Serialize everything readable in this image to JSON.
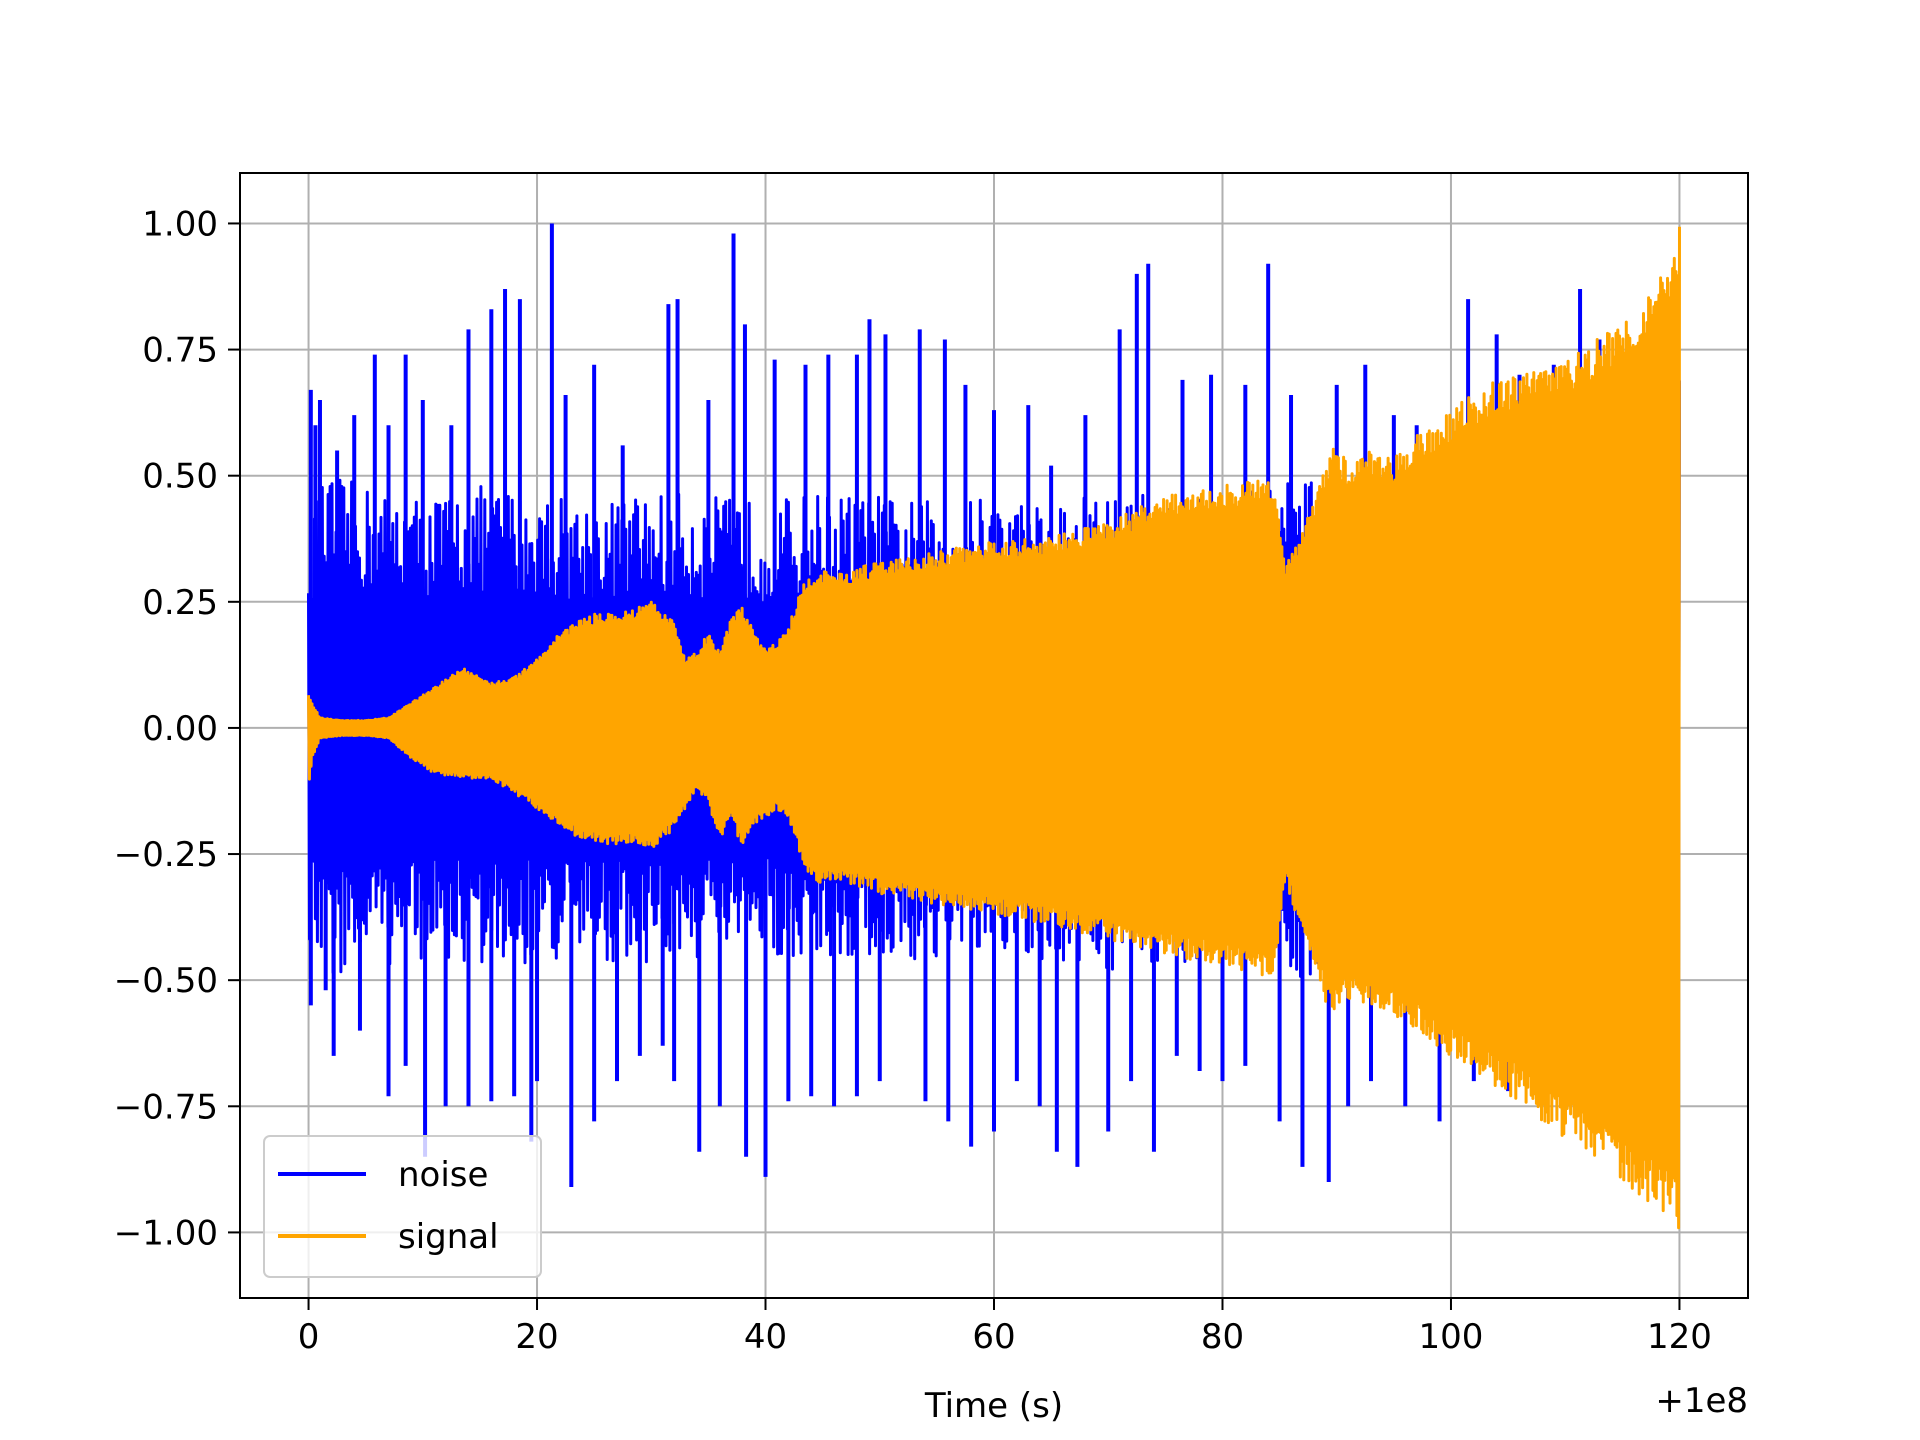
{
  "chart_data": {
    "type": "line",
    "title": "",
    "xlabel": "Time (s)",
    "ylabel": "",
    "x_offset_text": "+1e8",
    "xlim": [
      -6,
      126
    ],
    "ylim": [
      -1.13,
      1.1
    ],
    "x_ticks": [
      0,
      20,
      40,
      60,
      80,
      100,
      120
    ],
    "x_tick_labels": [
      "0",
      "20",
      "40",
      "60",
      "80",
      "100",
      "120"
    ],
    "y_ticks": [
      -1.0,
      -0.75,
      -0.5,
      -0.25,
      0.0,
      0.25,
      0.5,
      0.75,
      1.0
    ],
    "y_tick_labels": [
      "−1.00",
      "−0.75",
      "−0.50",
      "−0.25",
      "0.00",
      "0.25",
      "0.50",
      "0.75",
      "1.00"
    ],
    "grid": true,
    "legend": {
      "placement": "lower-left"
    },
    "series": [
      {
        "name": "noise",
        "color": "#0000ff",
        "envelope": {
          "x": [
            0,
            2,
            5,
            10,
            15,
            20,
            25,
            30,
            35,
            40,
            45,
            50,
            55,
            60,
            65,
            70,
            75,
            80,
            85,
            90,
            95,
            100,
            105,
            110,
            115,
            120
          ],
          "upper": [
            0.45,
            0.5,
            0.48,
            0.46,
            0.48,
            0.47,
            0.45,
            0.47,
            0.46,
            0.45,
            0.47,
            0.46,
            0.45,
            0.46,
            0.45,
            0.47,
            0.46,
            0.45,
            0.5,
            0.48,
            0.5,
            0.52,
            0.55,
            0.6,
            0.7,
            0.75
          ],
          "lower": [
            -0.45,
            -0.5,
            -0.48,
            -0.46,
            -0.48,
            -0.47,
            -0.46,
            -0.47,
            -0.46,
            -0.45,
            -0.47,
            -0.46,
            -0.47,
            -0.46,
            -0.47,
            -0.48,
            -0.47,
            -0.46,
            -0.5,
            -0.48,
            -0.52,
            -0.55,
            -0.6,
            -0.65,
            -0.7,
            -0.75
          ]
        },
        "spikes": [
          [
            0.2,
            0.67
          ],
          [
            0.6,
            0.6
          ],
          [
            1.0,
            0.65
          ],
          [
            2.5,
            0.55
          ],
          [
            4,
            0.62
          ],
          [
            5.8,
            0.74
          ],
          [
            7,
            0.6
          ],
          [
            8.5,
            0.74
          ],
          [
            10,
            0.65
          ],
          [
            12.5,
            0.6
          ],
          [
            14,
            0.79
          ],
          [
            16,
            0.83
          ],
          [
            17.2,
            0.87
          ],
          [
            18.5,
            0.85
          ],
          [
            21.3,
            1.0
          ],
          [
            22.5,
            0.66
          ],
          [
            25,
            0.72
          ],
          [
            27.5,
            0.56
          ],
          [
            31.5,
            0.84
          ],
          [
            32.3,
            0.85
          ],
          [
            35,
            0.65
          ],
          [
            37.2,
            0.98
          ],
          [
            38.2,
            0.8
          ],
          [
            40.8,
            0.73
          ],
          [
            43.5,
            0.72
          ],
          [
            45.5,
            0.74
          ],
          [
            48,
            0.74
          ],
          [
            49.1,
            0.81
          ],
          [
            50.5,
            0.78
          ],
          [
            53.5,
            0.79
          ],
          [
            55.7,
            0.77
          ],
          [
            57.5,
            0.68
          ],
          [
            60,
            0.63
          ],
          [
            63,
            0.64
          ],
          [
            65,
            0.52
          ],
          [
            68,
            0.62
          ],
          [
            71,
            0.79
          ],
          [
            72.5,
            0.9
          ],
          [
            73.5,
            0.92
          ],
          [
            76.5,
            0.69
          ],
          [
            79,
            0.7
          ],
          [
            82,
            0.68
          ],
          [
            84,
            0.92
          ],
          [
            86,
            0.66
          ],
          [
            90,
            0.68
          ],
          [
            92.5,
            0.72
          ],
          [
            95,
            0.62
          ],
          [
            97,
            0.6
          ],
          [
            101.5,
            0.85
          ],
          [
            104,
            0.78
          ],
          [
            106,
            0.7
          ],
          [
            109,
            0.72
          ],
          [
            111.3,
            0.87
          ],
          [
            113,
            0.77
          ],
          [
            0.2,
            -0.55
          ],
          [
            1.5,
            -0.52
          ],
          [
            2.2,
            -0.65
          ],
          [
            4.5,
            -0.6
          ],
          [
            7,
            -0.73
          ],
          [
            8.5,
            -0.67
          ],
          [
            10.2,
            -0.85
          ],
          [
            12,
            -0.75
          ],
          [
            14,
            -0.75
          ],
          [
            16,
            -0.74
          ],
          [
            18,
            -0.73
          ],
          [
            19.5,
            -0.82
          ],
          [
            20,
            -0.7
          ],
          [
            23,
            -0.91
          ],
          [
            25,
            -0.78
          ],
          [
            27,
            -0.7
          ],
          [
            29,
            -0.65
          ],
          [
            31,
            -0.63
          ],
          [
            32,
            -0.7
          ],
          [
            34.2,
            -0.84
          ],
          [
            36,
            -0.75
          ],
          [
            38.3,
            -0.85
          ],
          [
            40,
            -0.89
          ],
          [
            42,
            -0.74
          ],
          [
            44,
            -0.73
          ],
          [
            46,
            -0.75
          ],
          [
            48,
            -0.73
          ],
          [
            50,
            -0.7
          ],
          [
            54,
            -0.74
          ],
          [
            56,
            -0.78
          ],
          [
            58,
            -0.83
          ],
          [
            60,
            -0.8
          ],
          [
            62,
            -0.7
          ],
          [
            64,
            -0.75
          ],
          [
            65.5,
            -0.84
          ],
          [
            67.3,
            -0.87
          ],
          [
            70,
            -0.8
          ],
          [
            72,
            -0.7
          ],
          [
            74,
            -0.84
          ],
          [
            76,
            -0.65
          ],
          [
            78,
            -0.68
          ],
          [
            80,
            -0.7
          ],
          [
            82,
            -0.67
          ],
          [
            85,
            -0.78
          ],
          [
            87,
            -0.87
          ],
          [
            89.3,
            -0.9
          ],
          [
            91,
            -0.75
          ],
          [
            93,
            -0.7
          ],
          [
            96,
            -0.75
          ],
          [
            99,
            -0.78
          ],
          [
            102,
            -0.7
          ],
          [
            105,
            -0.72
          ],
          [
            108,
            -0.68
          ],
          [
            110,
            -0.75
          ],
          [
            113,
            -0.72
          ]
        ]
      },
      {
        "name": "signal",
        "color": "#ffa500",
        "envelope": {
          "x": [
            0,
            0.3,
            1,
            3,
            5,
            7,
            9,
            11,
            13.5,
            16,
            18,
            20,
            22,
            24,
            26,
            28,
            30,
            32,
            33,
            34,
            35,
            36,
            37,
            38,
            39,
            40,
            41,
            42,
            43,
            44,
            47,
            50,
            55,
            60,
            65,
            70,
            75,
            80,
            83,
            84.5,
            85.5,
            86.5,
            88,
            89.5,
            91,
            93,
            95,
            97,
            100,
            103,
            106,
            109,
            112,
            115,
            118,
            119.5,
            120
          ],
          "upper": [
            0.07,
            0.05,
            0.02,
            0.015,
            0.015,
            0.02,
            0.05,
            0.08,
            0.12,
            0.09,
            0.1,
            0.14,
            0.19,
            0.22,
            0.23,
            0.23,
            0.25,
            0.21,
            0.14,
            0.15,
            0.19,
            0.15,
            0.22,
            0.24,
            0.19,
            0.16,
            0.17,
            0.2,
            0.27,
            0.31,
            0.31,
            0.33,
            0.35,
            0.37,
            0.38,
            0.41,
            0.46,
            0.48,
            0.49,
            0.5,
            0.33,
            0.37,
            0.45,
            0.56,
            0.53,
            0.55,
            0.54,
            0.58,
            0.63,
            0.68,
            0.7,
            0.72,
            0.76,
            0.81,
            0.88,
            0.94,
            1.0
          ],
          "lower": [
            -0.13,
            -0.06,
            -0.02,
            -0.015,
            -0.015,
            -0.02,
            -0.06,
            -0.09,
            -0.1,
            -0.1,
            -0.13,
            -0.16,
            -0.2,
            -0.22,
            -0.23,
            -0.23,
            -0.24,
            -0.2,
            -0.16,
            -0.12,
            -0.15,
            -0.22,
            -0.18,
            -0.24,
            -0.19,
            -0.18,
            -0.16,
            -0.18,
            -0.25,
            -0.31,
            -0.31,
            -0.33,
            -0.35,
            -0.37,
            -0.39,
            -0.42,
            -0.45,
            -0.47,
            -0.49,
            -0.5,
            -0.3,
            -0.38,
            -0.46,
            -0.58,
            -0.54,
            -0.56,
            -0.58,
            -0.6,
            -0.65,
            -0.7,
            -0.74,
            -0.8,
            -0.85,
            -0.9,
            -0.95,
            -0.98,
            -1.02
          ]
        }
      }
    ]
  }
}
